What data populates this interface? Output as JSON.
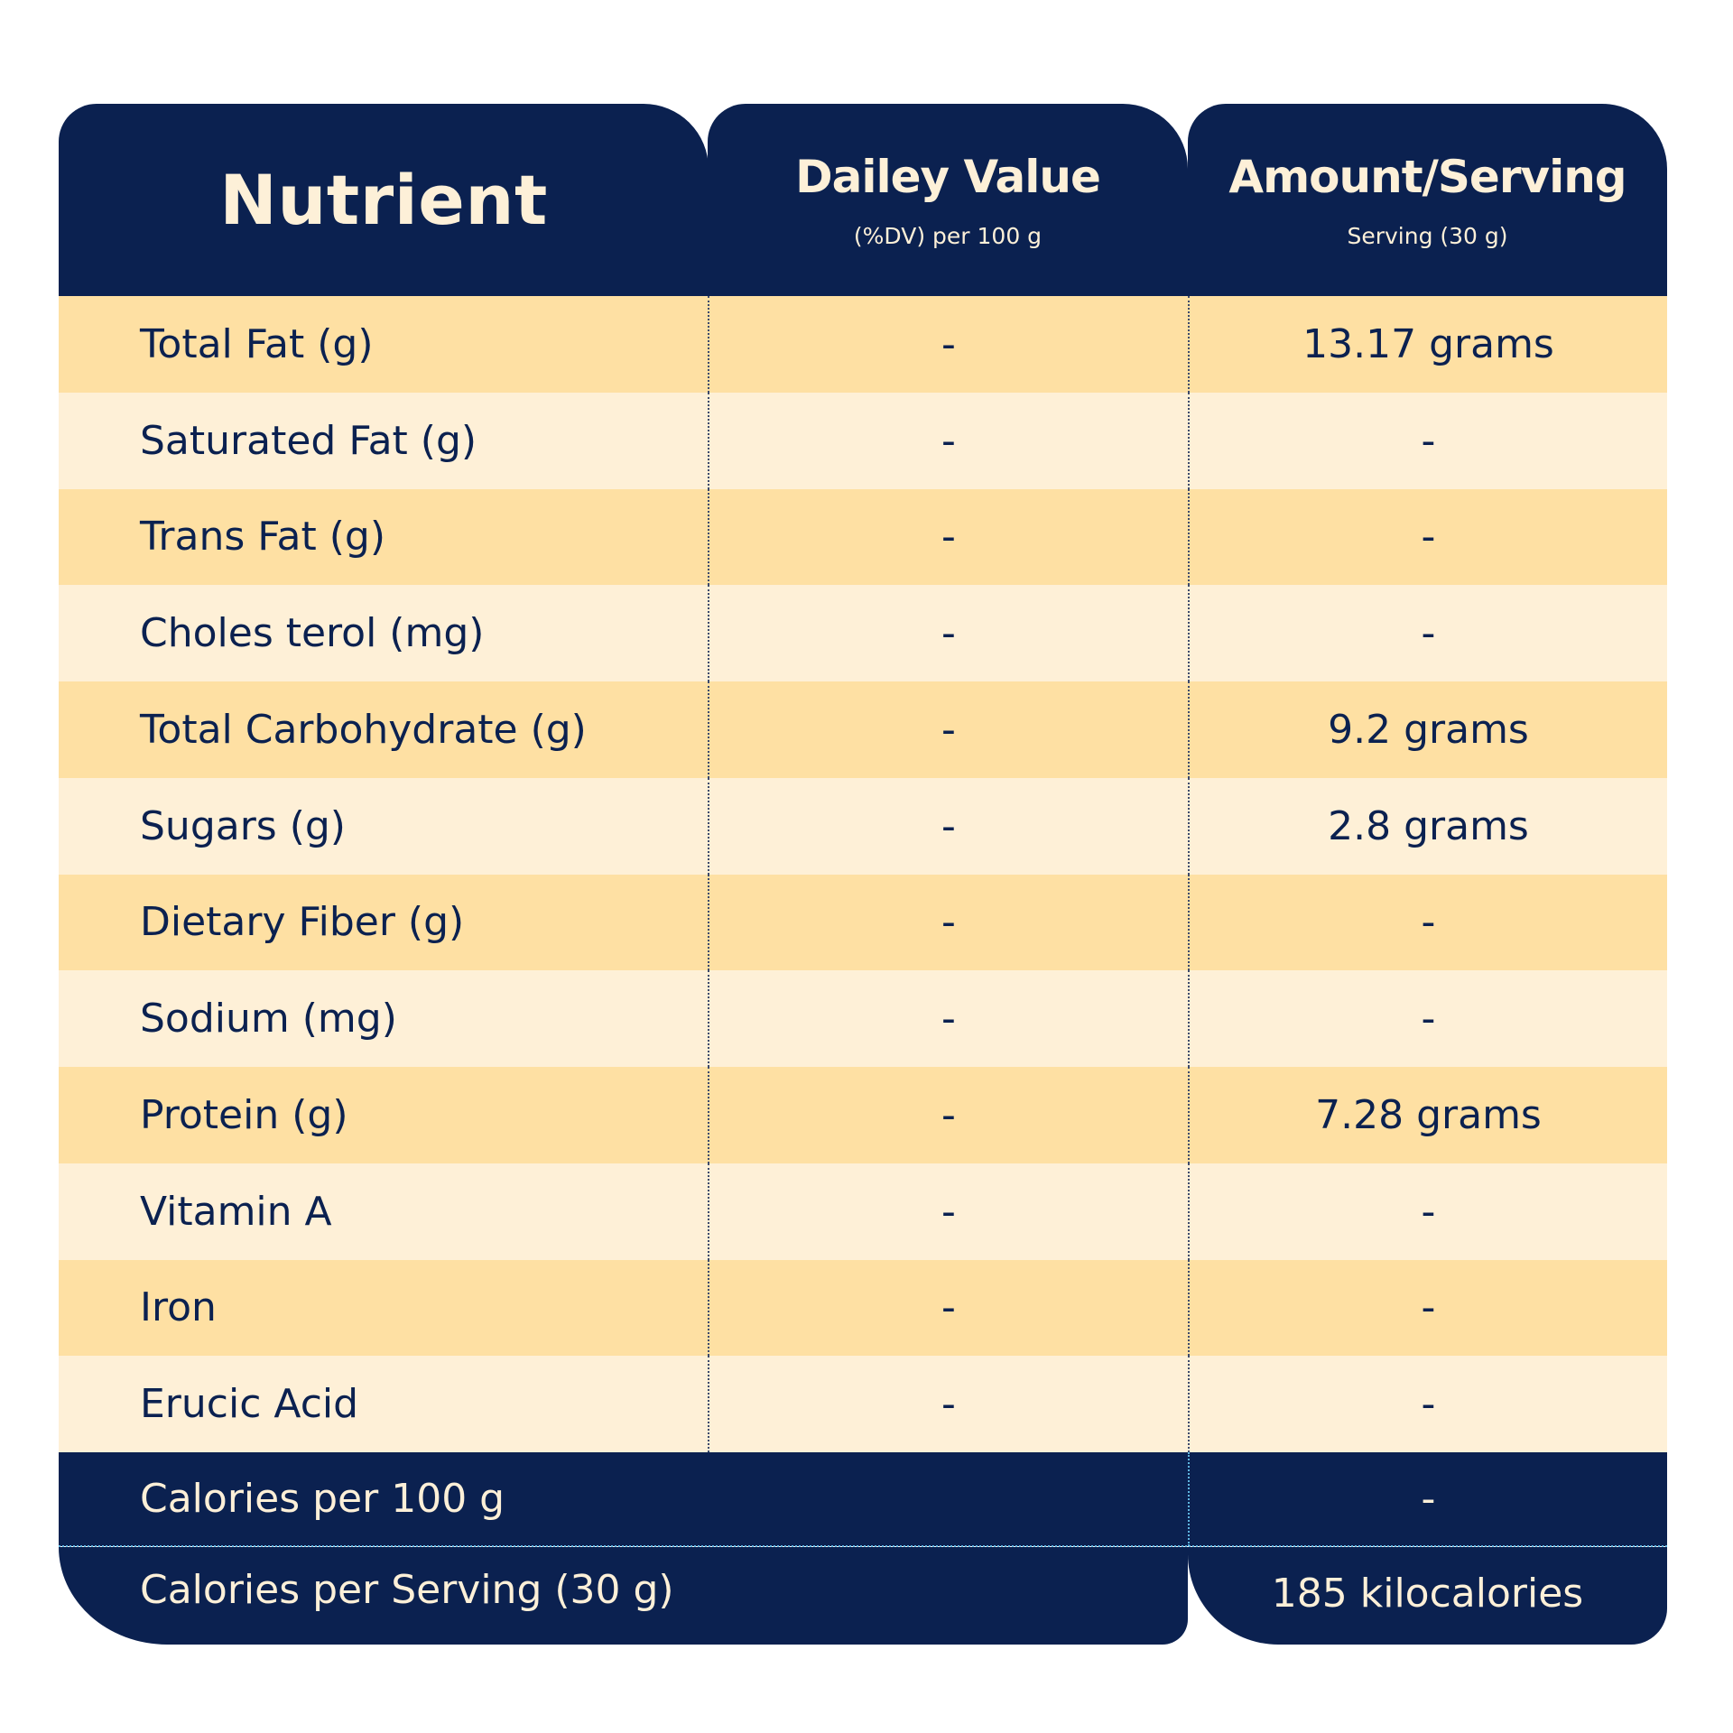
{
  "header": {
    "nutrient": "Nutrient",
    "daily_value": {
      "title": "Dailey Value",
      "subtitle": "(%DV) per 100 g"
    },
    "amount": {
      "title": "Amount/Serving",
      "subtitle": "Serving (30 g)"
    }
  },
  "rows": [
    {
      "nutrient": "Total Fat (g)",
      "dv": "-",
      "amount": "13.17 grams"
    },
    {
      "nutrient": "Saturated Fat (g)",
      "dv": "-",
      "amount": "-"
    },
    {
      "nutrient": "Trans Fat (g)",
      "dv": "-",
      "amount": "-"
    },
    {
      "nutrient": "Choles terol (mg)",
      "dv": "-",
      "amount": "-"
    },
    {
      "nutrient": "Total Carbohydrate (g)",
      "dv": "-",
      "amount": "9.2 grams"
    },
    {
      "nutrient": "Sugars (g)",
      "dv": "-",
      "amount": "2.8 grams"
    },
    {
      "nutrient": "Dietary Fiber (g)",
      "dv": "-",
      "amount": "-"
    },
    {
      "nutrient": "Sodium (mg)",
      "dv": "-",
      "amount": "-"
    },
    {
      "nutrient": "Protein (g)",
      "dv": "-",
      "amount": "7.28 grams"
    },
    {
      "nutrient": "Vitamin A",
      "dv": "-",
      "amount": "-"
    },
    {
      "nutrient": "Iron",
      "dv": "-",
      "amount": "-"
    },
    {
      "nutrient": "Erucic Acid",
      "dv": "-",
      "amount": "-"
    }
  ],
  "footer": {
    "calories_100g": {
      "label": "Calories per 100 g",
      "value": "-"
    },
    "calories_serving": {
      "label": "Calories per Serving (30 g)",
      "value": "185 kilocalories"
    }
  },
  "colors": {
    "navy": "#0b2150",
    "cream_text": "#fdf0d8",
    "row_dark": "#fee0a3",
    "row_light": "#fef0d7",
    "footer_divider": "#5fb6e0"
  }
}
